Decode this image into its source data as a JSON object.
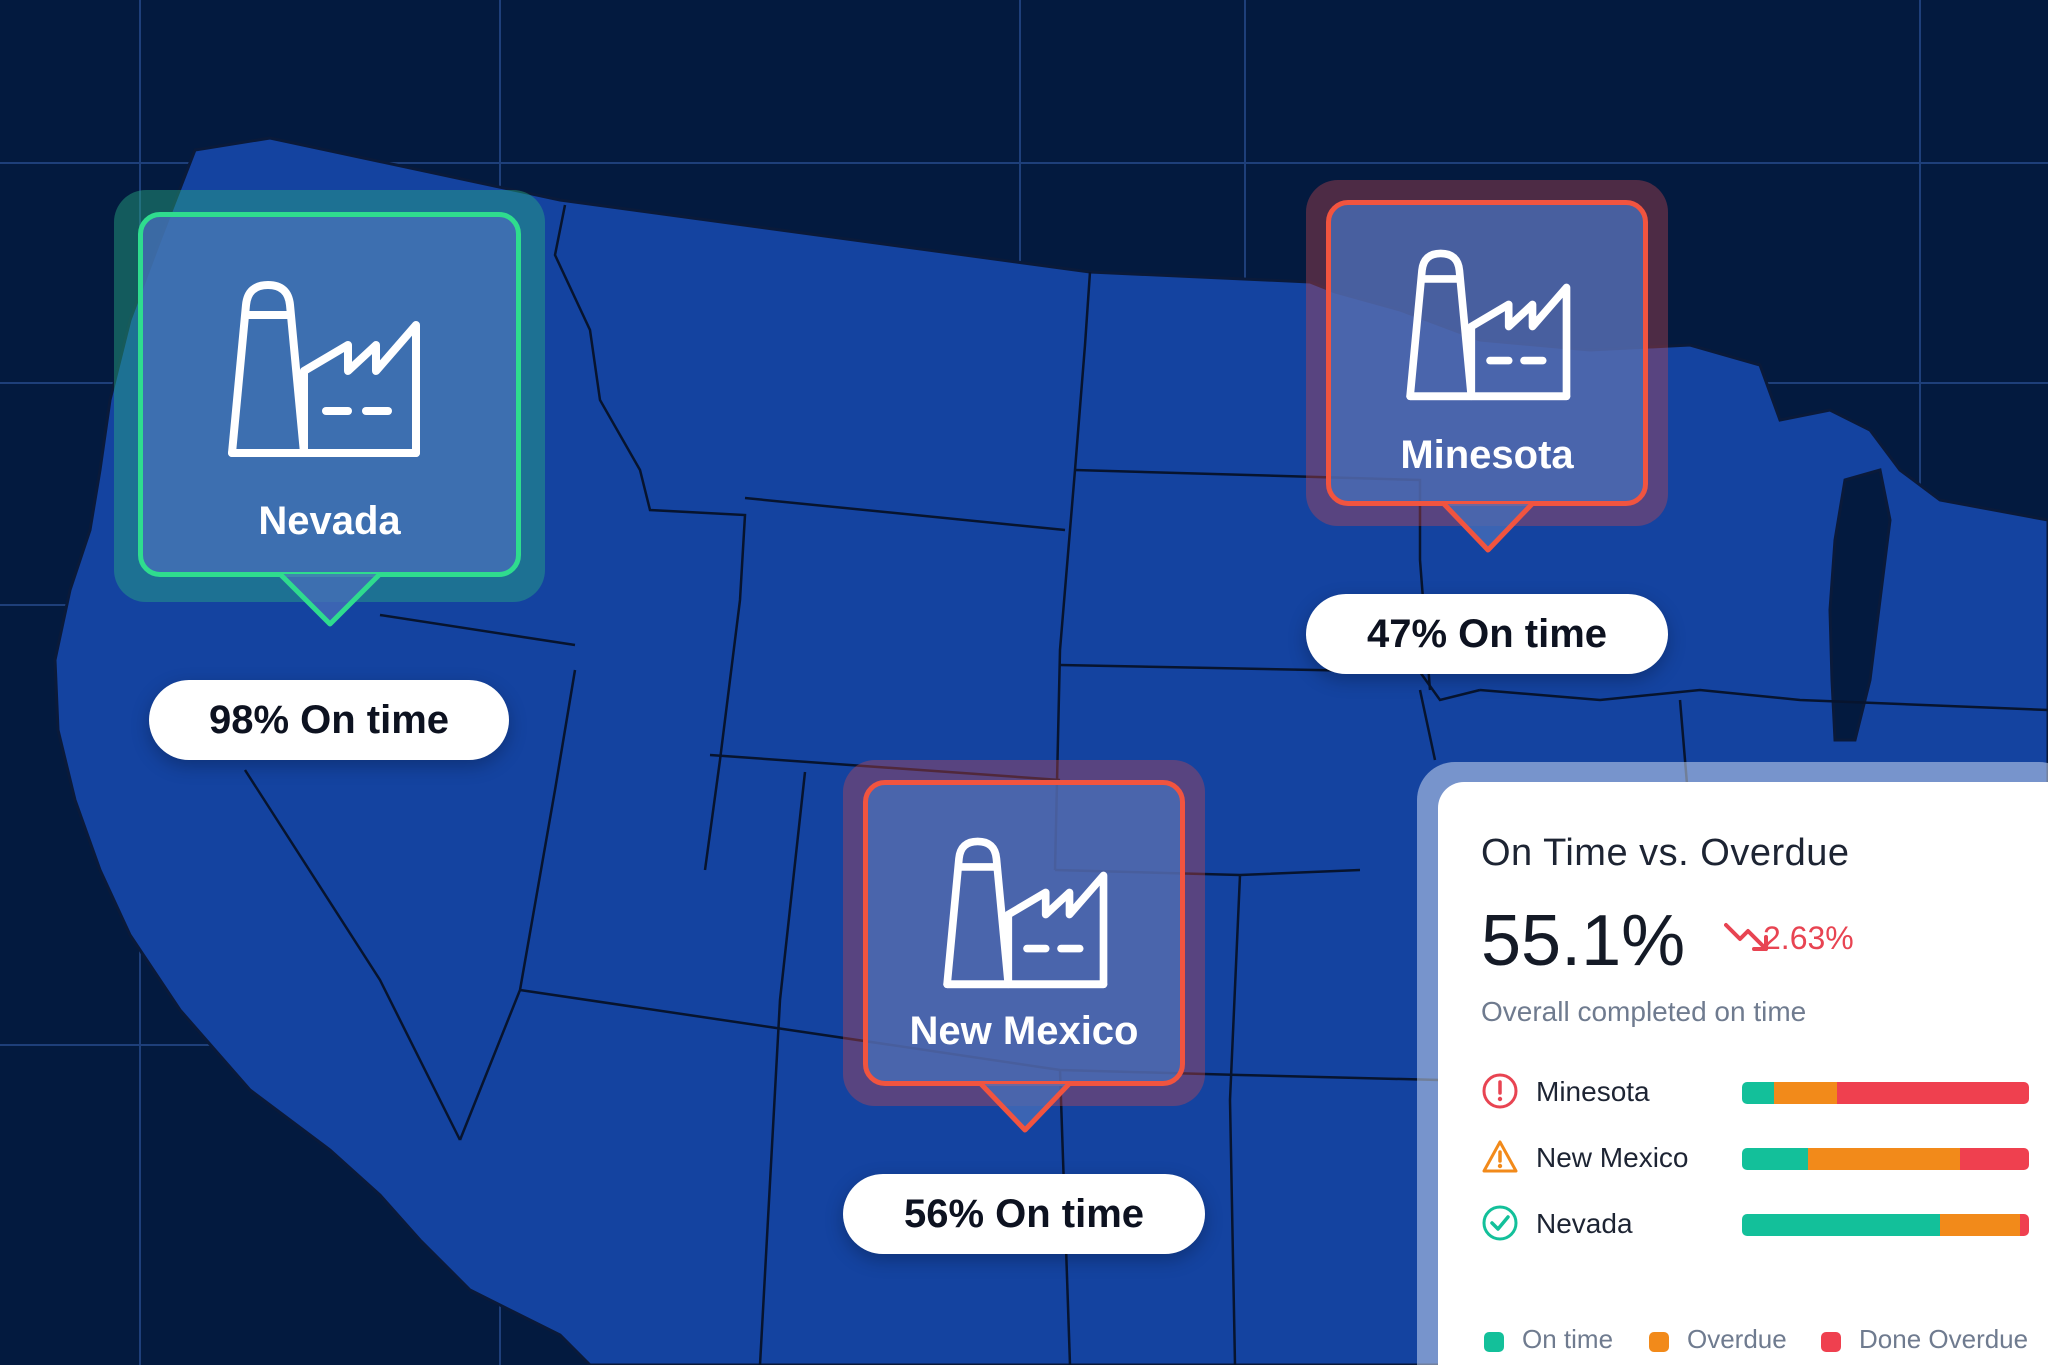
{
  "map": {
    "background_color": "#031a3f",
    "land_color": "#1443a0",
    "grid_color": "#1e3f7a"
  },
  "markers": [
    {
      "name": "Nevada",
      "status_color": "#2fdc8e",
      "pill_text": "98% On time"
    },
    {
      "name": "Minesota",
      "status_color": "#f1543f",
      "pill_text": "47% On time"
    },
    {
      "name": "New Mexico",
      "status_color": "#f1543f",
      "pill_text": "56% On time"
    }
  ],
  "panel": {
    "title": "On Time vs. Overdue",
    "value": "55.1%",
    "trend": {
      "direction": "down",
      "icon": "trend-down-icon",
      "text": "2.63%",
      "color": "#e84452"
    },
    "subtitle": "Overall completed on time",
    "rows": [
      {
        "label": "Minesota",
        "status_icon": "alert-circle-icon",
        "on_time": 0.11,
        "overdue": 0.22,
        "done_overdue": 0.67
      },
      {
        "label": "New Mexico",
        "status_icon": "warning-triangle-icon",
        "on_time": 0.23,
        "overdue": 0.53,
        "done_overdue": 0.24
      },
      {
        "label": "Nevada",
        "status_icon": "check-circle-icon",
        "on_time": 0.69,
        "overdue": 0.28,
        "done_overdue": 0.03
      }
    ],
    "legend": [
      {
        "label": "On time",
        "color": "#13c09a"
      },
      {
        "label": "Overdue",
        "color": "#f28a1a"
      },
      {
        "label": "Done Overdue",
        "color": "#ef404f"
      }
    ]
  }
}
